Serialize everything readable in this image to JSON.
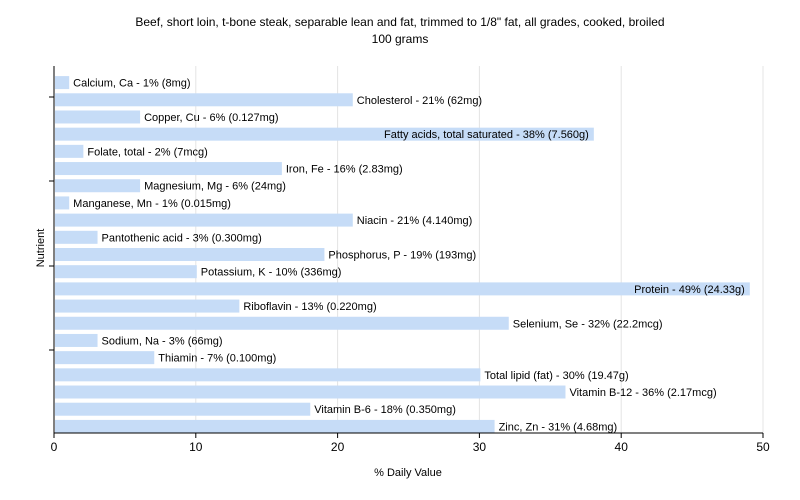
{
  "chart_data": {
    "type": "bar",
    "orientation": "horizontal",
    "title": "Beef, short loin, t-bone steak, separable lean and fat, trimmed to 1/8\" fat, all grades, cooked, broiled",
    "subtitle": "100 grams",
    "xlabel": "% Daily Value",
    "ylabel": "Nutrient",
    "xlim": [
      0,
      50
    ],
    "xticks": [
      "0",
      "10",
      "20",
      "30",
      "40",
      "50"
    ],
    "grid": true,
    "bar_color": "#c6dcf7",
    "categories": [
      "Calcium, Ca",
      "Cholesterol",
      "Copper, Cu",
      "Fatty acids, total saturated",
      "Folate, total",
      "Iron, Fe",
      "Magnesium, Mg",
      "Manganese, Mn",
      "Niacin",
      "Pantothenic acid",
      "Phosphorus, P",
      "Potassium, K",
      "Protein",
      "Riboflavin",
      "Selenium, Se",
      "Sodium, Na",
      "Thiamin",
      "Total lipid (fat)",
      "Vitamin B-12",
      "Vitamin B-6",
      "Zinc, Zn"
    ],
    "values": [
      1,
      21,
      6,
      38,
      2,
      16,
      6,
      1,
      21,
      3,
      19,
      10,
      49,
      13,
      32,
      3,
      7,
      30,
      36,
      18,
      31
    ],
    "labels": [
      "Calcium, Ca - 1% (8mg)",
      "Cholesterol - 21% (62mg)",
      "Copper, Cu - 6% (0.127mg)",
      "Fatty acids, total saturated - 38% (7.560g)",
      "Folate, total - 2% (7mcg)",
      "Iron, Fe - 16% (2.83mg)",
      "Magnesium, Mg - 6% (24mg)",
      "Manganese, Mn - 1% (0.015mg)",
      "Niacin - 21% (4.140mg)",
      "Pantothenic acid - 3% (0.300mg)",
      "Phosphorus, P - 19% (193mg)",
      "Potassium, K - 10% (336mg)",
      "Protein - 49% (24.33g)",
      "Riboflavin - 13% (0.220mg)",
      "Selenium, Se - 32% (22.2mcg)",
      "Sodium, Na - 3% (66mg)",
      "Thiamin - 7% (0.100mg)",
      "Total lipid (fat) - 30% (19.47g)",
      "Vitamin B-12 - 36% (2.17mcg)",
      "Vitamin B-6 - 18% (0.350mg)",
      "Zinc, Zn - 31% (4.68mg)"
    ]
  }
}
